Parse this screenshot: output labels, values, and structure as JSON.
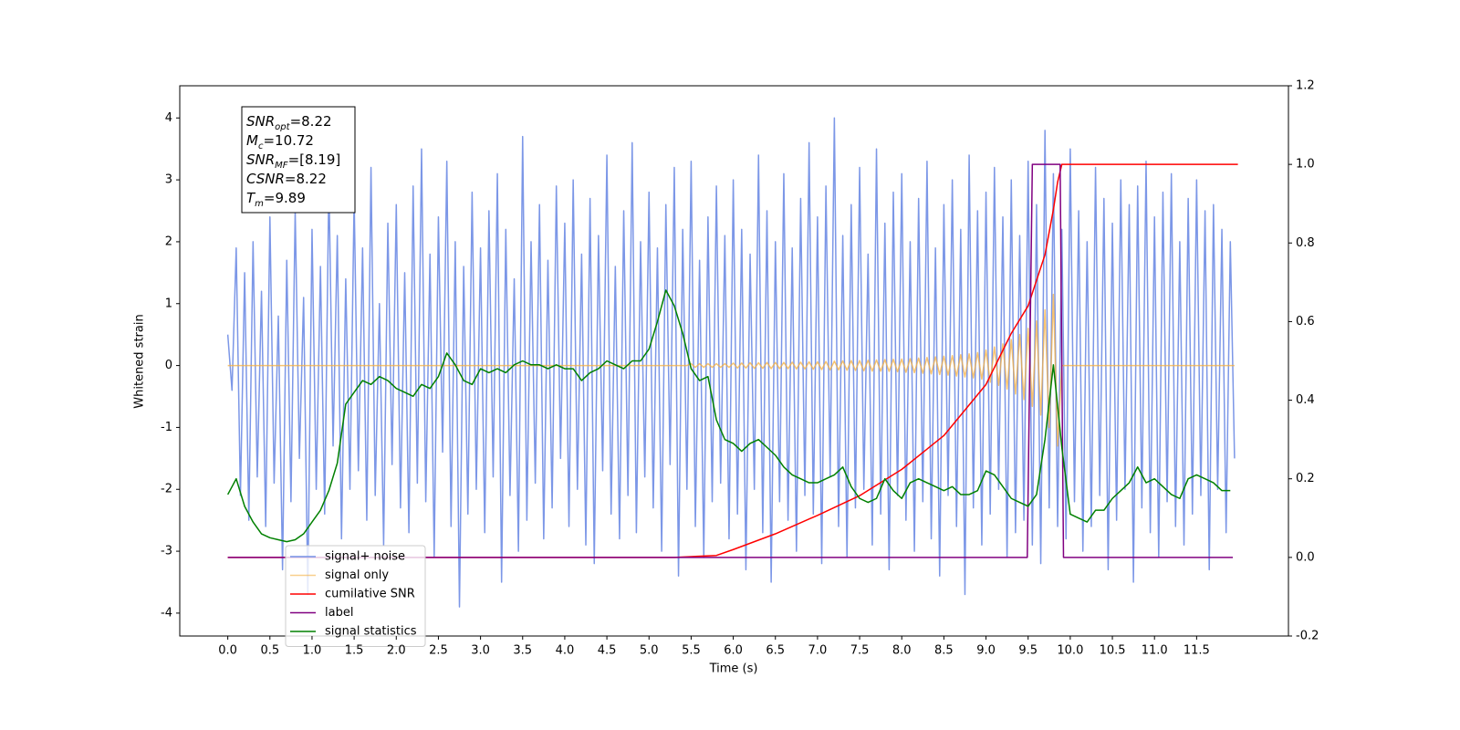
{
  "chart_data": {
    "type": "line",
    "xlabel": "Time (s)",
    "ylabel": "Whitened strain",
    "xlim": [
      -0.57,
      12.59
    ],
    "ylim": [
      -4.37,
      4.52
    ],
    "y2lim": [
      -0.2,
      1.2
    ],
    "xticks": [
      {
        "value": 0,
        "label": "0.0"
      },
      0.5,
      {
        "value": 1,
        "label": "1.0"
      },
      1.5,
      {
        "value": 2,
        "label": "2.0"
      },
      2.5,
      {
        "value": 3,
        "label": "3.0"
      },
      3.5,
      {
        "value": 4,
        "label": "4.0"
      },
      4.5,
      {
        "value": 5,
        "label": "5.0"
      },
      5.5,
      {
        "value": 6,
        "label": "6.0"
      },
      6.5,
      {
        "value": 7,
        "label": "7.0"
      },
      7.5,
      {
        "value": 8,
        "label": "8.0"
      },
      8.5,
      {
        "value": 9,
        "label": "9.0"
      },
      9.5,
      {
        "value": 10,
        "label": "10.0"
      },
      10.5,
      {
        "value": 11,
        "label": "11.0"
      },
      11.5
    ],
    "yticks": [
      -4,
      -3,
      -2,
      -1,
      0,
      1,
      2,
      3,
      4
    ],
    "y2ticks": [
      -0.2,
      {
        "value": 0,
        "label": "0.0"
      },
      0.2,
      0.4,
      0.6,
      0.8,
      {
        "value": 1,
        "label": "1.0"
      },
      1.2
    ],
    "legend": "lower left",
    "annotations": [
      {
        "symbol": "SNR",
        "subscript": "opt",
        "text": "=8.22"
      },
      {
        "symbol": "M",
        "subscript": "c",
        "text": "=10.72"
      },
      {
        "symbol": "SNR",
        "subscript": "MF",
        "text": "=[8.19]"
      },
      {
        "symbol": "CSNR",
        "subscript": "",
        "text": "=8.22"
      },
      {
        "symbol": "T",
        "subscript": "m",
        "text": "=9.89"
      }
    ],
    "x": [
      0,
      0.05,
      0.1,
      0.15,
      0.2,
      0.25,
      0.3,
      0.35,
      0.4,
      0.45,
      0.5,
      0.55,
      0.6,
      0.65,
      0.7,
      0.75,
      0.8,
      0.85,
      0.9,
      0.95,
      1,
      1.05,
      1.1,
      1.15,
      1.2,
      1.25,
      1.3,
      1.35,
      1.4,
      1.45,
      1.5,
      1.55,
      1.6,
      1.65,
      1.7,
      1.75,
      1.8,
      1.85,
      1.9,
      1.95,
      2,
      2.05,
      2.1,
      2.15,
      2.2,
      2.25,
      2.3,
      2.35,
      2.4,
      2.45,
      2.5,
      2.55,
      2.6,
      2.65,
      2.7,
      2.75,
      2.8,
      2.85,
      2.9,
      2.95,
      3,
      3.05,
      3.1,
      3.15,
      3.2,
      3.25,
      3.3,
      3.35,
      3.4,
      3.45,
      3.5,
      3.55,
      3.6,
      3.65,
      3.7,
      3.75,
      3.8,
      3.85,
      3.9,
      3.95,
      4,
      4.05,
      4.1,
      4.15,
      4.2,
      4.25,
      4.3,
      4.35,
      4.4,
      4.45,
      4.5,
      4.55,
      4.6,
      4.65,
      4.7,
      4.75,
      4.8,
      4.85,
      4.9,
      4.95,
      5,
      5.05,
      5.1,
      5.15,
      5.2,
      5.25,
      5.3,
      5.35,
      5.4,
      5.45,
      5.5,
      5.55,
      5.6,
      5.65,
      5.7,
      5.75,
      5.8,
      5.85,
      5.9,
      5.95,
      6,
      6.05,
      6.1,
      6.15,
      6.2,
      6.25,
      6.3,
      6.35,
      6.4,
      6.45,
      6.5,
      6.55,
      6.6,
      6.65,
      6.7,
      6.75,
      6.8,
      6.85,
      6.9,
      6.95,
      7,
      7.05,
      7.1,
      7.15,
      7.2,
      7.25,
      7.3,
      7.35,
      7.4,
      7.45,
      7.5,
      7.55,
      7.6,
      7.65,
      7.7,
      7.75,
      7.8,
      7.85,
      7.9,
      7.95,
      8,
      8.05,
      8.1,
      8.15,
      8.2,
      8.25,
      8.3,
      8.35,
      8.4,
      8.45,
      8.5,
      8.55,
      8.6,
      8.65,
      8.7,
      8.75,
      8.8,
      8.85,
      8.9,
      8.95,
      9,
      9.05,
      9.1,
      9.15,
      9.2,
      9.25,
      9.3,
      9.35,
      9.4,
      9.45,
      9.5,
      9.55,
      9.6,
      9.65,
      9.7,
      9.75,
      9.8,
      9.85,
      9.9,
      9.95,
      10,
      10.05,
      10.1,
      10.15,
      10.2,
      10.25,
      10.3,
      10.35,
      10.4,
      10.45,
      10.5,
      10.55,
      10.6,
      10.65,
      10.7,
      10.75,
      10.8,
      10.85,
      10.9,
      10.95,
      11,
      11.05,
      11.1,
      11.15,
      11.2,
      11.25,
      11.3,
      11.35,
      11.4,
      11.45,
      11.5,
      11.55,
      11.6,
      11.65,
      11.7,
      11.75,
      11.8,
      11.85,
      11.9,
      11.95
    ],
    "series": [
      {
        "name": "signal+ noise",
        "color": "#7591e6",
        "values": [
          0.5,
          -0.4,
          1.9,
          -2.1,
          1.5,
          -2.5,
          2.0,
          -1.8,
          1.2,
          -2.6,
          2.4,
          -1.9,
          0.8,
          -3.3,
          1.7,
          -2.2,
          2.5,
          -1.5,
          1.1,
          -3.7,
          2.2,
          -2.0,
          1.6,
          -2.4,
          3.0,
          -1.3,
          2.1,
          -2.8,
          1.4,
          -2.0,
          2.7,
          -1.7,
          1.9,
          -2.5,
          3.2,
          -2.1,
          1.0,
          -2.9,
          2.3,
          -1.6,
          2.6,
          -2.3,
          1.5,
          -2.7,
          2.9,
          -1.9,
          3.5,
          -2.2,
          1.8,
          -3.1,
          2.4,
          -1.4,
          3.3,
          -2.6,
          2.0,
          -3.9,
          1.6,
          -2.4,
          2.8,
          -2.0,
          1.9,
          -2.7,
          2.5,
          -1.8,
          3.1,
          -3.5,
          2.2,
          -2.1,
          1.4,
          -3.0,
          3.7,
          -2.5,
          2.0,
          -1.9,
          2.6,
          -2.8,
          1.7,
          -2.3,
          2.9,
          -1.5,
          2.3,
          -2.6,
          3.0,
          -2.0,
          1.8,
          -2.9,
          2.7,
          -3.2,
          2.1,
          -1.7,
          3.4,
          -2.4,
          1.6,
          -2.8,
          2.5,
          -2.1,
          3.6,
          -2.7,
          2.0,
          -1.8,
          2.8,
          -2.3,
          1.9,
          -3.0,
          2.6,
          -1.6,
          3.2,
          -3.4,
          2.2,
          -2.0,
          3.3,
          -2.6,
          1.7,
          -3.1,
          2.4,
          -2.2,
          2.9,
          -1.9,
          2.1,
          -2.8,
          3.0,
          -2.4,
          2.2,
          -3.3,
          1.8,
          -2.0,
          3.4,
          -2.7,
          2.5,
          -3.5,
          2.0,
          -2.2,
          3.1,
          -2.5,
          1.9,
          -3.0,
          2.7,
          -2.1,
          3.6,
          -2.4,
          2.4,
          -3.2,
          2.9,
          -1.8,
          4.0,
          -2.6,
          2.1,
          -3.1,
          2.6,
          -2.3,
          3.2,
          -2.0,
          1.8,
          -2.9,
          3.5,
          -2.4,
          2.3,
          -3.3,
          2.8,
          -2.1,
          3.1,
          -2.5,
          2.0,
          -3.0,
          2.7,
          -2.2,
          3.3,
          -2.8,
          1.9,
          -3.4,
          2.6,
          -2.1,
          3.0,
          -2.6,
          2.2,
          -3.7,
          3.4,
          -2.3,
          2.5,
          -2.9,
          2.8,
          -2.4,
          3.2,
          -2.0,
          2.4,
          -3.1,
          3.0,
          -2.7,
          2.1,
          -2.5,
          3.3,
          -2.9,
          2.6,
          -3.2,
          3.8,
          -2.3,
          3.1,
          -2.6,
          2.2,
          -2.8,
          3.5,
          -2.2,
          2.5,
          -3.0,
          2.0,
          -2.6,
          3.2,
          -2.1,
          2.7,
          -3.3,
          2.3,
          -2.5,
          3.0,
          -2.0,
          2.6,
          -3.5,
          2.9,
          -2.3,
          3.3,
          -2.7,
          2.4,
          -3.1,
          2.8,
          -2.2,
          3.1,
          -2.6,
          2.0,
          -2.9,
          2.7,
          -2.4,
          3.0,
          -2.1,
          2.5,
          -3.3,
          2.6,
          -2.0,
          2.2,
          -2.7,
          2.0,
          -1.5
        ]
      },
      {
        "name": "signal only",
        "color": "#f5b041",
        "values": [
          0,
          0,
          0,
          0,
          0,
          0,
          0,
          0,
          0,
          0,
          0,
          0,
          0,
          0,
          0,
          0,
          0,
          0,
          0,
          0,
          0,
          0,
          0,
          0,
          0,
          0,
          0,
          0,
          0,
          0,
          0,
          0,
          0,
          0,
          0,
          0,
          0,
          0,
          0,
          0,
          0,
          0,
          0,
          0,
          0,
          0,
          0,
          0,
          0,
          0,
          0,
          0,
          0,
          0,
          0,
          0,
          0,
          0,
          0,
          0,
          0,
          0,
          0,
          0,
          0,
          0,
          0,
          0,
          0,
          0,
          0,
          0,
          0,
          0,
          0,
          0,
          0,
          0,
          0,
          0,
          0,
          0,
          0,
          0,
          0,
          0,
          0,
          0,
          0,
          0,
          0,
          0,
          0,
          0,
          0,
          0,
          0,
          0,
          0,
          0,
          0,
          0,
          0,
          0,
          0,
          0,
          0,
          0,
          0,
          0,
          0.03,
          -0.03,
          0.03,
          -0.03,
          0.03,
          -0.03,
          0.03,
          -0.03,
          0.03,
          -0.03,
          0.04,
          -0.04,
          0.04,
          -0.04,
          0.045,
          -0.045,
          0.045,
          -0.045,
          0.05,
          -0.05,
          0.05,
          -0.05,
          0.05,
          -0.05,
          0.055,
          -0.055,
          0.055,
          -0.055,
          0.06,
          -0.06,
          0.06,
          -0.065,
          0.065,
          -0.07,
          0.07,
          -0.07,
          0.075,
          -0.075,
          0.08,
          -0.08,
          0.08,
          -0.085,
          0.085,
          -0.09,
          0.09,
          -0.09,
          0.095,
          -0.095,
          0.1,
          -0.1,
          0.105,
          -0.11,
          0.11,
          -0.115,
          0.12,
          -0.125,
          0.13,
          -0.135,
          0.14,
          -0.145,
          0.15,
          -0.155,
          0.16,
          -0.17,
          0.175,
          -0.185,
          0.19,
          -0.2,
          0.21,
          -0.22,
          0.25,
          -0.27,
          0.3,
          -0.32,
          0.35,
          -0.38,
          0.42,
          -0.46,
          0.5,
          -0.55,
          0.6,
          -0.66,
          0.72,
          -0.8,
          0.9,
          -1.0,
          1.15,
          -1.3,
          0,
          0,
          0,
          0,
          0,
          0,
          0,
          0,
          0,
          0,
          0,
          0,
          0,
          0,
          0,
          0,
          0,
          0,
          0,
          0,
          0,
          0,
          0,
          0,
          0,
          0,
          0,
          0,
          0,
          0,
          0,
          0,
          0,
          0,
          0,
          0,
          0,
          0,
          0,
          0,
          0,
          0
        ]
      },
      {
        "name": "cumilative SNR",
        "color": "#ff0000",
        "axis": "y2",
        "x": [
          0,
          5.3,
          5.8,
          6.0,
          6.5,
          7.0,
          7.5,
          8.0,
          8.5,
          9.0,
          9.3,
          9.5,
          9.7,
          9.8,
          9.85,
          9.9,
          11.99
        ],
        "values": [
          0,
          0,
          0.005,
          0.02,
          0.06,
          0.107,
          0.157,
          0.224,
          0.31,
          0.44,
          0.57,
          0.64,
          0.77,
          0.885,
          0.955,
          1.0,
          1.0
        ]
      },
      {
        "name": "label",
        "color": "#800080",
        "axis": "y2",
        "x": [
          0,
          9.49,
          9.55,
          9.88,
          9.92,
          11.93
        ],
        "values": [
          0,
          0,
          1,
          1,
          0,
          0
        ]
      },
      {
        "name": "signal statistics",
        "color": "#008000",
        "axis": "y2",
        "x": [
          0,
          0.1,
          0.2,
          0.3,
          0.4,
          0.5,
          0.6,
          0.7,
          0.8,
          0.9,
          1,
          1.1,
          1.2,
          1.3,
          1.4,
          1.5,
          1.6,
          1.7,
          1.8,
          1.9,
          2,
          2.1,
          2.2,
          2.3,
          2.4,
          2.5,
          2.6,
          2.7,
          2.8,
          2.9,
          3,
          3.1,
          3.2,
          3.3,
          3.4,
          3.5,
          3.6,
          3.7,
          3.8,
          3.9,
          4,
          4.1,
          4.2,
          4.3,
          4.4,
          4.5,
          4.6,
          4.7,
          4.8,
          4.9,
          5,
          5.1,
          5.2,
          5.3,
          5.4,
          5.5,
          5.6,
          5.7,
          5.8,
          5.9,
          6,
          6.1,
          6.2,
          6.3,
          6.4,
          6.5,
          6.6,
          6.7,
          6.8,
          6.9,
          7,
          7.1,
          7.2,
          7.3,
          7.4,
          7.5,
          7.6,
          7.7,
          7.8,
          7.9,
          8,
          8.1,
          8.2,
          8.3,
          8.4,
          8.5,
          8.6,
          8.7,
          8.8,
          8.9,
          9,
          9.1,
          9.2,
          9.3,
          9.4,
          9.5,
          9.6,
          9.7,
          9.8,
          9.9,
          10,
          10.1,
          10.2,
          10.3,
          10.4,
          10.5,
          10.6,
          10.7,
          10.8,
          10.9,
          11,
          11.1,
          11.2,
          11.3,
          11.4,
          11.5,
          11.6,
          11.7,
          11.8,
          11.9
        ],
        "values": [
          0.16,
          0.2,
          0.13,
          0.09,
          0.06,
          0.05,
          0.045,
          0.04,
          0.045,
          0.06,
          0.09,
          0.12,
          0.17,
          0.24,
          0.39,
          0.42,
          0.45,
          0.44,
          0.46,
          0.45,
          0.43,
          0.42,
          0.41,
          0.44,
          0.43,
          0.46,
          0.52,
          0.49,
          0.45,
          0.44,
          0.48,
          0.47,
          0.48,
          0.47,
          0.49,
          0.5,
          0.49,
          0.49,
          0.48,
          0.49,
          0.48,
          0.48,
          0.45,
          0.47,
          0.48,
          0.5,
          0.49,
          0.48,
          0.5,
          0.5,
          0.53,
          0.6,
          0.68,
          0.64,
          0.57,
          0.48,
          0.45,
          0.46,
          0.35,
          0.3,
          0.29,
          0.27,
          0.29,
          0.3,
          0.28,
          0.26,
          0.23,
          0.21,
          0.2,
          0.19,
          0.19,
          0.2,
          0.21,
          0.23,
          0.18,
          0.15,
          0.14,
          0.15,
          0.2,
          0.17,
          0.15,
          0.19,
          0.2,
          0.19,
          0.18,
          0.17,
          0.18,
          0.16,
          0.16,
          0.17,
          0.22,
          0.21,
          0.18,
          0.15,
          0.14,
          0.13,
          0.16,
          0.3,
          0.49,
          0.28,
          0.11,
          0.1,
          0.09,
          0.12,
          0.12,
          0.15,
          0.17,
          0.19,
          0.23,
          0.19,
          0.2,
          0.18,
          0.16,
          0.15,
          0.2,
          0.21,
          0.2,
          0.19,
          0.17,
          0.17
        ]
      }
    ]
  }
}
